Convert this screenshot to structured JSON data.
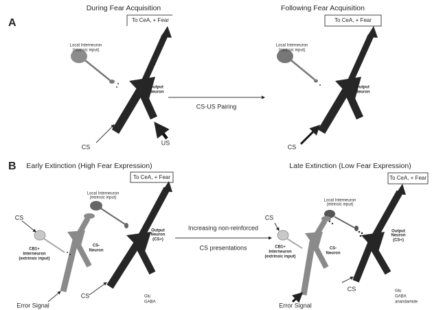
{
  "panel_a": {
    "letter": "A",
    "left": {
      "title": "During Fear Acquisition",
      "target": "To CeA, + Fear",
      "interneuron": [
        "Local Interneuron",
        "(intrinsic input)"
      ],
      "output": [
        "Output",
        "Neuron"
      ],
      "cs": "CS",
      "us": "US"
    },
    "arrow": "CS-US Pairing",
    "right": {
      "title": "Following Fear Acquisition",
      "target": "To CeA, + Fear",
      "interneuron": [
        "Local Interneuron",
        "(intrinsic input)"
      ],
      "output": [
        "Output",
        "Neuron"
      ],
      "cs": "CS"
    }
  },
  "panel_b": {
    "letter": "B",
    "left": {
      "title": "Early Extinction (High Fear Expression)",
      "target": "To CeA, + Fear",
      "interneuron": [
        "Local Interneuron",
        "(intrinsic input)"
      ],
      "output": [
        "Output",
        "Neuron",
        "(CS+)"
      ],
      "cs_top": "CS",
      "cb1": [
        "CB1+",
        "Interneuron",
        "(extrinsic input)"
      ],
      "cs_minus": [
        "CS-",
        "Neuron"
      ],
      "cs_bottom": "CS",
      "error": "Error Signal",
      "legend": [
        "Glu",
        "GABA"
      ]
    },
    "arrow": [
      "Increasing non-reinforced",
      "CS presentations"
    ],
    "right": {
      "title": "Late Extinction (Low Fear Expression)",
      "target": "To CeA, + Fear",
      "interneuron": [
        "Local Interneuron",
        "(intrinsic input)"
      ],
      "output": [
        "Output",
        "Neuron",
        "(CS+)"
      ],
      "cs_top": "CS",
      "cb1": [
        "CB1+",
        "Interneuron",
        "(extrinsic input)"
      ],
      "cs_minus": [
        "CS-",
        "Neuron"
      ],
      "cs_bottom": "CS",
      "error": "Error Signal",
      "legend": [
        "Glu",
        "GABA",
        "anandamide"
      ]
    }
  }
}
